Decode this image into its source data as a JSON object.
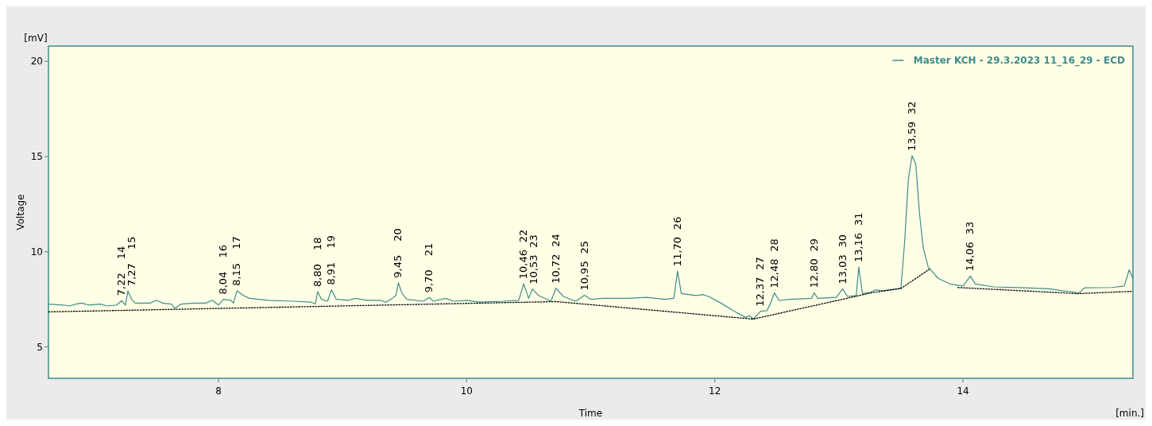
{
  "chart_data": {
    "type": "line",
    "xlabel": "Time",
    "ylabel": "Voltage",
    "xlim": [
      6.63,
      15.37
    ],
    "ylim": [
      3.35,
      20.8
    ],
    "xticks": [
      8,
      10,
      12,
      14
    ],
    "yticks": [
      5,
      10,
      15,
      20
    ],
    "grid": false,
    "legend": "top right",
    "marker": "none",
    "series": [
      {
        "name": "Master KCH - 29.3.2023 11_16_29 - ECD",
        "color": "#3f8c8c",
        "line_style": "solid",
        "x": [
          6.63,
          6.75,
          6.8,
          6.85,
          6.9,
          6.95,
          7.05,
          7.1,
          7.18,
          7.22,
          7.25,
          7.27,
          7.3,
          7.33,
          7.45,
          7.5,
          7.55,
          7.62,
          7.65,
          7.7,
          7.8,
          7.9,
          7.95,
          8.0,
          8.04,
          8.1,
          8.12,
          8.15,
          8.2,
          8.25,
          8.4,
          8.6,
          8.75,
          8.78,
          8.8,
          8.83,
          8.88,
          8.91,
          8.95,
          9.05,
          9.1,
          9.2,
          9.3,
          9.35,
          9.4,
          9.43,
          9.45,
          9.48,
          9.52,
          9.65,
          9.7,
          9.73,
          9.83,
          9.9,
          10.0,
          10.1,
          10.3,
          10.42,
          10.46,
          10.5,
          10.53,
          10.58,
          10.68,
          10.72,
          10.78,
          10.88,
          10.95,
          11.0,
          11.1,
          11.3,
          11.45,
          11.6,
          11.67,
          11.7,
          11.73,
          11.85,
          11.9,
          11.95,
          12.05,
          12.15,
          12.25,
          12.28,
          12.31,
          12.37,
          12.42,
          12.45,
          12.48,
          12.52,
          12.6,
          12.78,
          12.8,
          12.83,
          12.98,
          13.03,
          13.07,
          13.14,
          13.16,
          13.19,
          13.25,
          13.3,
          13.35,
          13.5,
          13.53,
          13.56,
          13.59,
          13.62,
          13.65,
          13.68,
          13.72,
          13.8,
          13.9,
          14.0,
          14.06,
          14.1,
          14.25,
          14.5,
          14.7,
          14.8,
          14.88,
          14.93,
          14.98,
          15.2,
          15.3,
          15.34,
          15.37
        ],
        "values": [
          7.25,
          7.2,
          7.15,
          7.25,
          7.3,
          7.2,
          7.25,
          7.15,
          7.2,
          7.43,
          7.2,
          7.94,
          7.5,
          7.3,
          7.3,
          7.45,
          7.3,
          7.25,
          7.03,
          7.25,
          7.3,
          7.3,
          7.45,
          7.2,
          7.5,
          7.45,
          7.3,
          7.95,
          7.7,
          7.55,
          7.45,
          7.4,
          7.35,
          7.25,
          7.9,
          7.5,
          7.4,
          8.0,
          7.5,
          7.45,
          7.55,
          7.45,
          7.45,
          7.35,
          7.55,
          7.7,
          8.37,
          7.8,
          7.5,
          7.4,
          7.6,
          7.4,
          7.55,
          7.4,
          7.45,
          7.35,
          7.4,
          7.45,
          8.31,
          7.55,
          8.04,
          7.7,
          7.4,
          8.08,
          7.65,
          7.4,
          7.71,
          7.5,
          7.55,
          7.55,
          7.6,
          7.5,
          7.55,
          8.98,
          7.8,
          7.7,
          7.75,
          7.65,
          7.3,
          6.9,
          6.55,
          6.65,
          6.46,
          6.87,
          6.9,
          7.3,
          7.83,
          7.43,
          7.5,
          7.55,
          7.84,
          7.55,
          7.6,
          8.05,
          7.65,
          7.7,
          9.19,
          7.8,
          7.85,
          8.0,
          7.95,
          8.07,
          10.5,
          13.8,
          15.04,
          14.6,
          12.0,
          10.2,
          9.2,
          8.6,
          8.3,
          8.2,
          8.72,
          8.3,
          8.15,
          8.1,
          8.05,
          7.95,
          7.9,
          7.8,
          8.1,
          8.12,
          8.2,
          9.05,
          8.6
        ]
      },
      {
        "color": "#000000",
        "line_style": "dotted",
        "x": [
          6.63,
          10.72,
          12.31,
          13.27,
          13.5,
          13.73,
          13.85,
          13.96,
          14.38,
          14.93,
          15.37
        ],
        "values": [
          6.84,
          7.38,
          6.46,
          7.85,
          8.07,
          9.08,
          null,
          8.12,
          7.98,
          7.8,
          7.92
        ]
      }
    ],
    "annotations": [
      "[mV]",
      "[min.]",
      {
        "text": "7,22",
        "x": 7.22,
        "y": 7.43
      },
      "14",
      {
        "text": "7,27",
        "x": 7.27,
        "y": 7.94
      },
      "15",
      {
        "text": "8,04",
        "x": 8.04,
        "y": 7.5
      },
      "16",
      {
        "text": "8,15",
        "x": 8.15,
        "y": 7.95
      },
      "17",
      {
        "text": "8,80",
        "x": 8.8,
        "y": 7.9
      },
      "18",
      {
        "text": "8,91",
        "x": 8.91,
        "y": 8.0
      },
      "19",
      {
        "text": "9,45",
        "x": 9.45,
        "y": 8.37
      },
      "20",
      {
        "text": "9,70",
        "x": 9.7,
        "y": 7.6
      },
      "21",
      {
        "text": "10,46",
        "x": 10.46,
        "y": 8.31
      },
      "22",
      {
        "text": "10,53",
        "x": 10.53,
        "y": 8.04
      },
      "23",
      {
        "text": "10,72",
        "x": 10.72,
        "y": 8.08
      },
      "24",
      {
        "text": "10,95",
        "x": 10.95,
        "y": 7.71
      },
      "25",
      {
        "text": "11,70",
        "x": 11.7,
        "y": 8.98
      },
      "26",
      {
        "text": "12,37",
        "x": 12.37,
        "y": 6.87
      },
      "27",
      {
        "text": "12,48",
        "x": 12.48,
        "y": 7.83
      },
      "28",
      {
        "text": "12,80",
        "x": 12.8,
        "y": 7.84
      },
      "29",
      {
        "text": "13,03",
        "x": 13.03,
        "y": 8.05
      },
      "30",
      {
        "text": "13,16",
        "x": 13.16,
        "y": 9.19
      },
      "31",
      {
        "text": "13,59",
        "x": 13.59,
        "y": 15.04
      },
      "32",
      {
        "text": "14,06",
        "x": 14.06,
        "y": 8.72
      },
      "33"
    ]
  }
}
